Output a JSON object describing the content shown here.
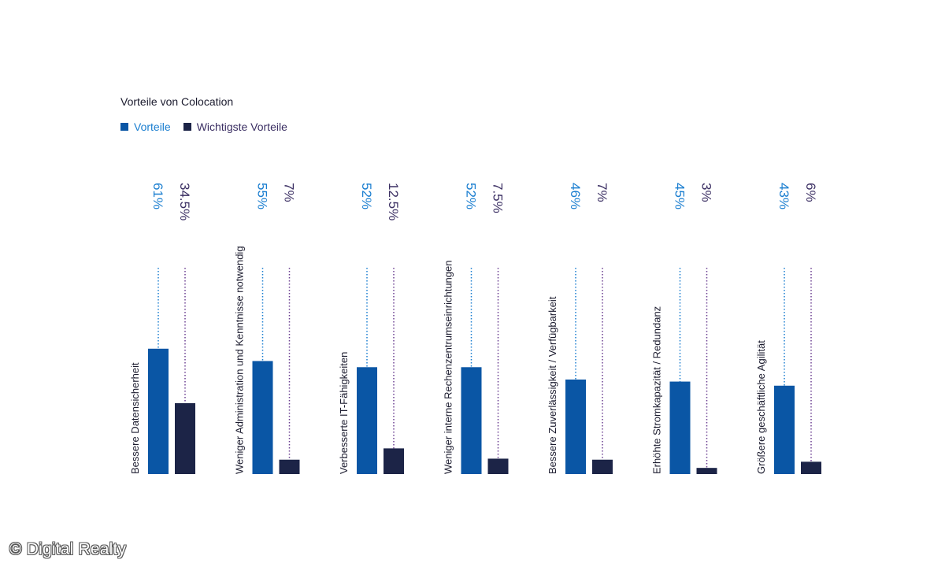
{
  "chart_data": {
    "type": "bar",
    "title": "Vorteile von Colocation",
    "categories": [
      "Bessere Datensicherheit",
      "Weniger Administration und Kenntnisse notwendig",
      "Verbesserte IT-Fähigkeiten",
      "Weniger interne Rechenzentrumseinrichtungen",
      "Bessere Zuverlässigkeit / Verfügbarkeit",
      "Erhöhte Stromkapazität / Redundanz",
      "Größere geschäftliche Agilität"
    ],
    "series": [
      {
        "name": "Vorteile",
        "color": "#0a56a5",
        "values": [
          61,
          55,
          52,
          52,
          46,
          45,
          43
        ],
        "labels": [
          "61%",
          "55%",
          "52%",
          "52%",
          "46%",
          "45%",
          "43%"
        ]
      },
      {
        "name": "Wichtigste Vorteile",
        "color": "#1c2447",
        "values": [
          34.5,
          7,
          12.5,
          7.5,
          7,
          3,
          6
        ],
        "labels": [
          "34.5%",
          "7%",
          "12.5%",
          "7.5%",
          "7%",
          "3%",
          "6%"
        ]
      }
    ],
    "ylim": [
      0,
      100
    ],
    "grid": false,
    "legend_position": "top-left"
  },
  "colors": {
    "label_text": "#1b1b2e",
    "series_1_label": "#1a7ed0",
    "series_2_label": "#3b2f63",
    "series_2_leader": "#6b3f91"
  },
  "watermark": "© Digital Realty"
}
